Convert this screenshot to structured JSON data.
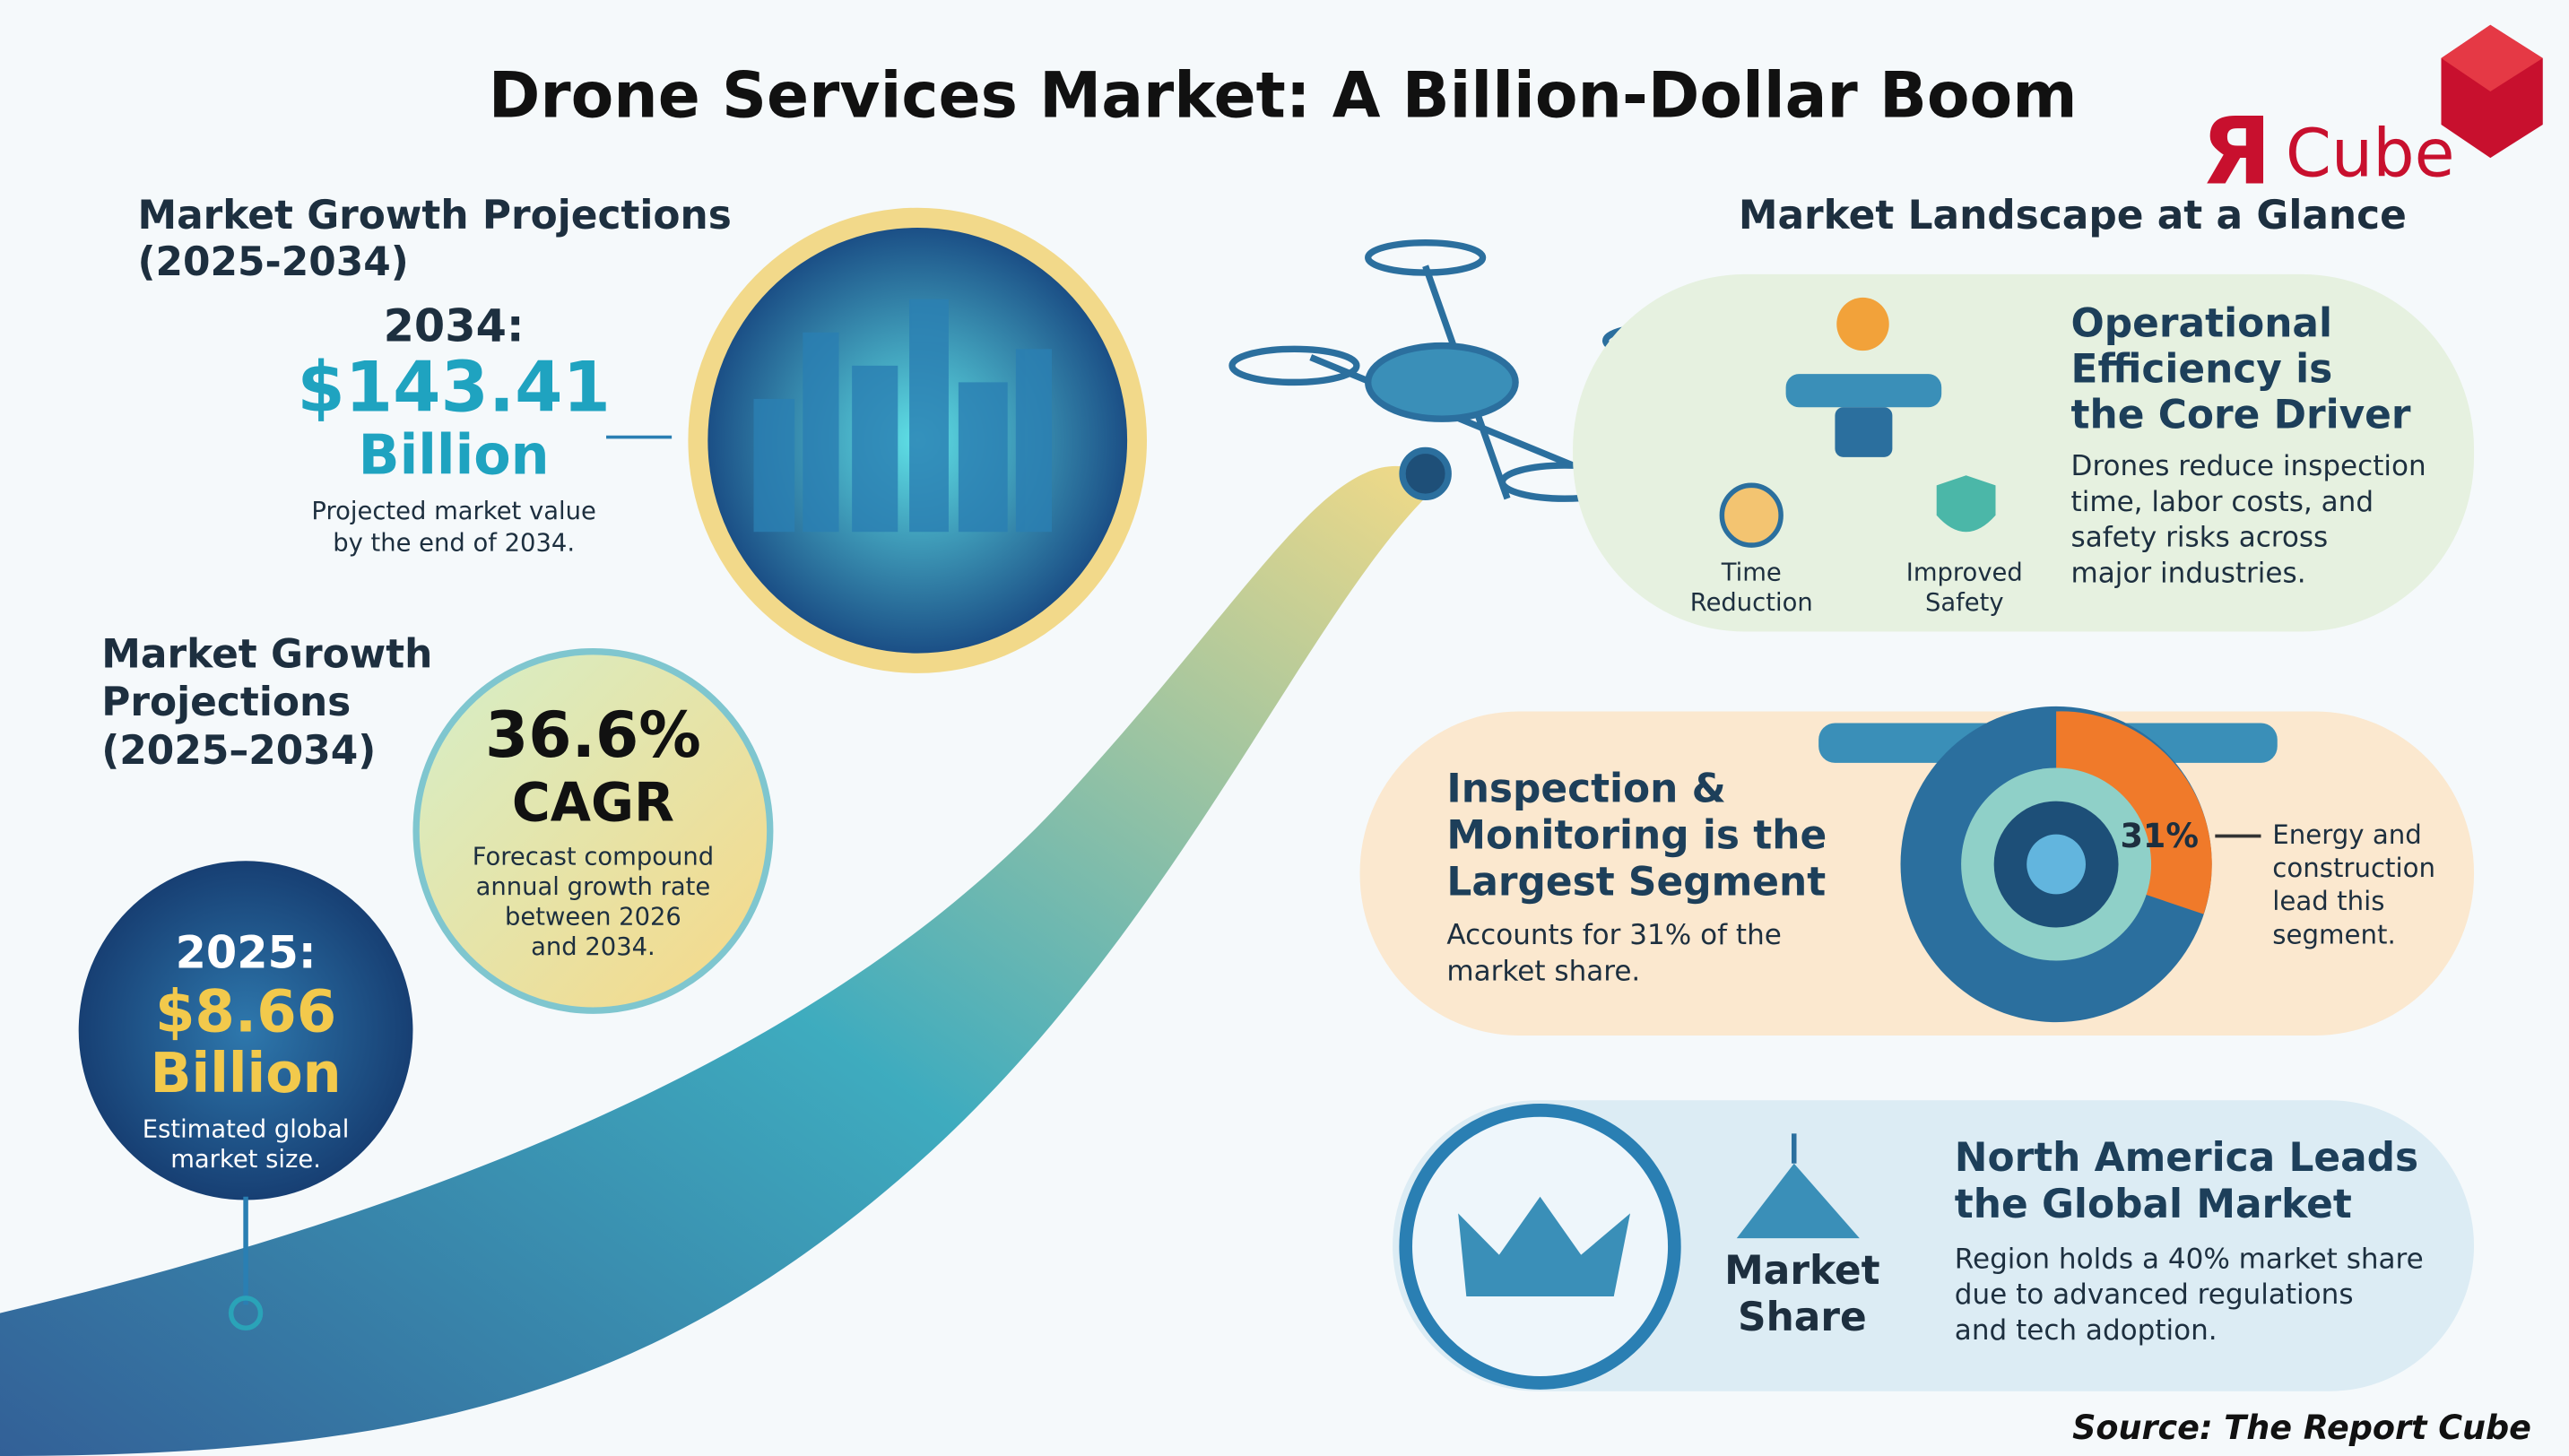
{
  "title": "Drone Services Market: A Billion-Dollar Boom",
  "logo": {
    "mark": "Я",
    "text": "Cube"
  },
  "left": {
    "heading_top": [
      "Market Growth Projections",
      "(2025-2034)"
    ],
    "value_2034": {
      "year": "2034:",
      "amount": "$143.41",
      "unit": "Billion",
      "note": [
        "Projected market value",
        "by the end of 2034."
      ]
    },
    "cagr": {
      "rate": "36.6%",
      "label": "CAGR",
      "note": [
        "Forecast compound",
        "annual growth rate",
        "between 2026",
        "and 2034."
      ]
    },
    "heading_mid": [
      "Market Growth",
      "Projections",
      "(2025–2034)"
    ],
    "value_2025": {
      "year": "2025:",
      "amount": "$8.66",
      "unit": "Billion",
      "note": [
        "Estimated global",
        "market size."
      ]
    }
  },
  "right": {
    "heading": "Market Landscape at a Glance",
    "cards": [
      {
        "title": [
          "Operational",
          "Efficiency is",
          "the Core Driver"
        ],
        "text": [
          "Drones reduce inspection",
          "time, labor costs, and",
          "safety risks across",
          "major industries."
        ],
        "icons": [
          [
            "Time",
            "Reduction"
          ],
          [
            "Improved",
            "Safety"
          ]
        ]
      },
      {
        "title": [
          "Inspection &",
          "Monitoring is the",
          "Largest Segment"
        ],
        "text": [
          "Accounts for 31% of the",
          "market share."
        ],
        "badge": "31%",
        "callout": [
          "Energy and",
          "construction",
          "lead this",
          "segment."
        ]
      },
      {
        "title": [
          "North America Leads",
          "the Global Market"
        ],
        "text": [
          "Region holds a 40% market share",
          "due to advanced regulations",
          "and tech adoption."
        ],
        "badge": [
          "Market",
          "Share"
        ]
      }
    ]
  },
  "source": "Source: The Report Cube"
}
